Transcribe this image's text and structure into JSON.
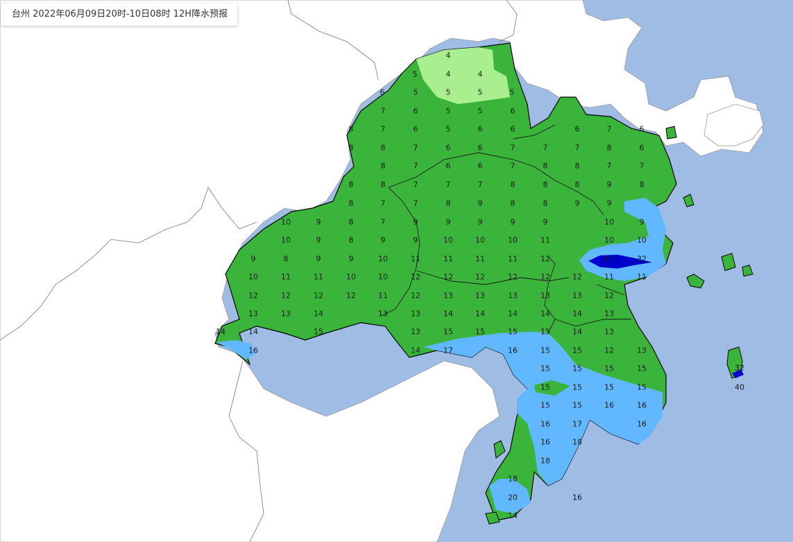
{
  "header": {
    "title": "台州 2022年06月09日20时-10日08时 12H降水预报"
  },
  "legend_colors": {
    "sea": "#9ebce4",
    "land_outside": "#ffffff",
    "rain_light_green": "#a9ef90",
    "rain_green": "#3ab43a",
    "rain_light_blue": "#62b8ff",
    "rain_dark_blue": "#0000cc"
  },
  "grid_values": [
    [
      "4"
    ],
    [
      "5",
      "4",
      "4"
    ],
    [
      "6",
      "5",
      "5",
      "5",
      "5"
    ],
    [
      "7",
      "6",
      "5",
      "5",
      "6"
    ],
    [
      "8",
      "7",
      "6",
      "5",
      "6",
      "6",
      "6",
      "7",
      "6"
    ],
    [
      "8",
      "8",
      "7",
      "6",
      "6",
      "7",
      "7",
      "7",
      "8",
      "6"
    ],
    [
      "8",
      "7",
      "6",
      "6",
      "7",
      "8",
      "8",
      "7",
      "7"
    ],
    [
      "8",
      "8",
      "7",
      "7",
      "7",
      "8",
      "8",
      "8",
      "9",
      "8"
    ],
    [
      "8",
      "7",
      "7",
      "8",
      "9",
      "8",
      "8",
      "9",
      "9"
    ],
    [
      "10",
      "9",
      "8",
      "7",
      "9",
      "9",
      "9",
      "9",
      "9",
      "10",
      "9"
    ],
    [
      "10",
      "9",
      "8",
      "9",
      "9",
      "10",
      "10",
      "10",
      "11",
      "10",
      "10"
    ],
    [
      "9",
      "8",
      "9",
      "9",
      "10",
      "11",
      "11",
      "11",
      "11",
      "12",
      "13",
      "32"
    ],
    [
      "10",
      "11",
      "11",
      "10",
      "10",
      "12",
      "12",
      "12",
      "12",
      "12",
      "12",
      "11",
      "11"
    ],
    [
      "12",
      "12",
      "12",
      "12",
      "11",
      "12",
      "13",
      "13",
      "13",
      "13",
      "13",
      "12"
    ],
    [
      "13",
      "13",
      "14",
      "13",
      "13",
      "14",
      "14",
      "14",
      "14",
      "14",
      "13"
    ],
    [
      "14",
      "14",
      "15",
      "13",
      "15",
      "15",
      "15",
      "15",
      "14",
      "13"
    ],
    [
      "16",
      "14",
      "17",
      "16",
      "15",
      "15",
      "12",
      "13"
    ],
    [
      "15",
      "15",
      "15",
      "15"
    ],
    [
      "15",
      "15",
      "15",
      "15"
    ],
    [
      "15",
      "15",
      "16",
      "16"
    ],
    [
      "16",
      "17",
      "16"
    ],
    [
      "16",
      "18"
    ],
    [
      "18"
    ],
    [
      "18"
    ],
    [
      "20",
      "16"
    ],
    [
      "14"
    ],
    [
      "32",
      "40"
    ]
  ]
}
